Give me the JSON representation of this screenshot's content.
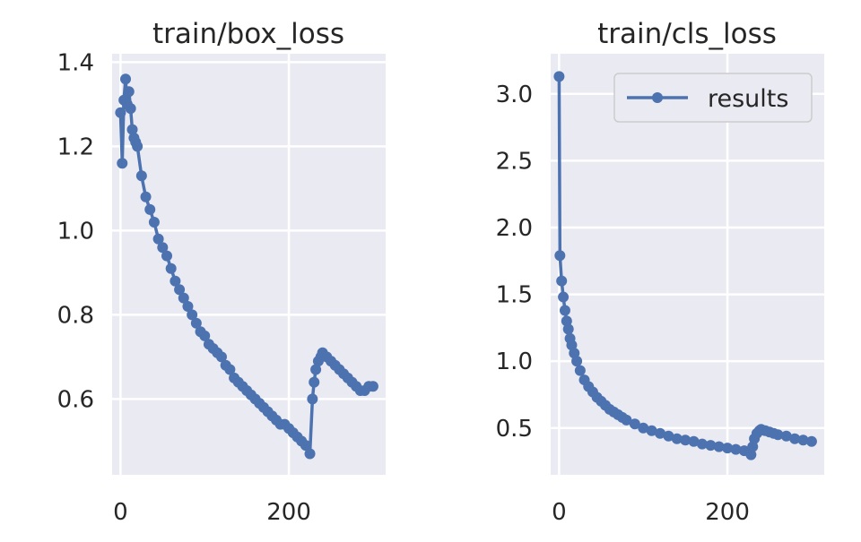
{
  "chart_data": [
    {
      "type": "line",
      "title": "train/box_loss",
      "xlabel": "",
      "ylabel": "",
      "xlim": [
        -10,
        315
      ],
      "ylim": [
        0.42,
        1.42
      ],
      "xticks": [
        0,
        200
      ],
      "xtick_labels": [
        "0",
        "200"
      ],
      "yticks": [
        0.6,
        0.8,
        1.0,
        1.2,
        1.4
      ],
      "ytick_labels": [
        "0.6",
        "0.8",
        "1.0",
        "1.2",
        "1.4"
      ],
      "grid": true,
      "line_color": "#4c72b0",
      "series": [
        {
          "name": "results",
          "x": [
            0,
            2,
            4,
            6,
            8,
            10,
            12,
            14,
            16,
            18,
            20,
            25,
            30,
            35,
            40,
            45,
            50,
            55,
            60,
            65,
            70,
            75,
            80,
            85,
            90,
            95,
            100,
            105,
            110,
            115,
            120,
            125,
            130,
            135,
            140,
            145,
            150,
            155,
            160,
            165,
            170,
            175,
            180,
            185,
            190,
            195,
            200,
            205,
            210,
            215,
            220,
            225,
            228,
            230,
            232,
            235,
            238,
            240,
            245,
            250,
            255,
            260,
            265,
            270,
            275,
            280,
            285,
            290,
            295,
            300
          ],
          "y": [
            1.28,
            1.16,
            1.31,
            1.36,
            1.3,
            1.33,
            1.29,
            1.24,
            1.22,
            1.21,
            1.2,
            1.13,
            1.08,
            1.05,
            1.02,
            0.98,
            0.96,
            0.94,
            0.91,
            0.88,
            0.86,
            0.84,
            0.82,
            0.8,
            0.78,
            0.76,
            0.75,
            0.73,
            0.72,
            0.71,
            0.7,
            0.68,
            0.67,
            0.65,
            0.64,
            0.63,
            0.62,
            0.61,
            0.6,
            0.59,
            0.58,
            0.57,
            0.56,
            0.55,
            0.54,
            0.54,
            0.53,
            0.52,
            0.51,
            0.5,
            0.49,
            0.47,
            0.6,
            0.64,
            0.67,
            0.69,
            0.7,
            0.71,
            0.7,
            0.69,
            0.68,
            0.67,
            0.66,
            0.65,
            0.64,
            0.63,
            0.62,
            0.62,
            0.63,
            0.63
          ]
        }
      ]
    },
    {
      "type": "line",
      "title": "train/cls_loss",
      "xlabel": "",
      "ylabel": "",
      "xlim": [
        -10,
        315
      ],
      "ylim": [
        0.15,
        3.3
      ],
      "xticks": [
        0,
        200
      ],
      "xtick_labels": [
        "0",
        "200"
      ],
      "yticks": [
        0.5,
        1.0,
        1.5,
        2.0,
        2.5,
        3.0
      ],
      "ytick_labels": [
        "0.5",
        "1.0",
        "1.5",
        "2.0",
        "2.5",
        "3.0"
      ],
      "grid": true,
      "legend": "top-right",
      "line_color": "#4c72b0",
      "series": [
        {
          "name": "results",
          "x": [
            0,
            1,
            3,
            5,
            7,
            9,
            11,
            13,
            15,
            18,
            21,
            25,
            30,
            35,
            40,
            45,
            50,
            55,
            60,
            65,
            70,
            75,
            80,
            90,
            100,
            110,
            120,
            130,
            140,
            150,
            160,
            170,
            180,
            190,
            200,
            210,
            220,
            228,
            230,
            232,
            235,
            238,
            240,
            245,
            250,
            255,
            260,
            270,
            280,
            290,
            300
          ],
          "y": [
            3.13,
            1.79,
            1.6,
            1.48,
            1.38,
            1.3,
            1.24,
            1.17,
            1.12,
            1.06,
            1.0,
            0.93,
            0.86,
            0.81,
            0.77,
            0.73,
            0.7,
            0.67,
            0.64,
            0.62,
            0.6,
            0.58,
            0.56,
            0.53,
            0.5,
            0.48,
            0.46,
            0.44,
            0.42,
            0.41,
            0.4,
            0.38,
            0.37,
            0.36,
            0.35,
            0.34,
            0.33,
            0.3,
            0.36,
            0.42,
            0.46,
            0.48,
            0.49,
            0.48,
            0.47,
            0.46,
            0.45,
            0.44,
            0.42,
            0.41,
            0.4
          ]
        }
      ]
    }
  ]
}
